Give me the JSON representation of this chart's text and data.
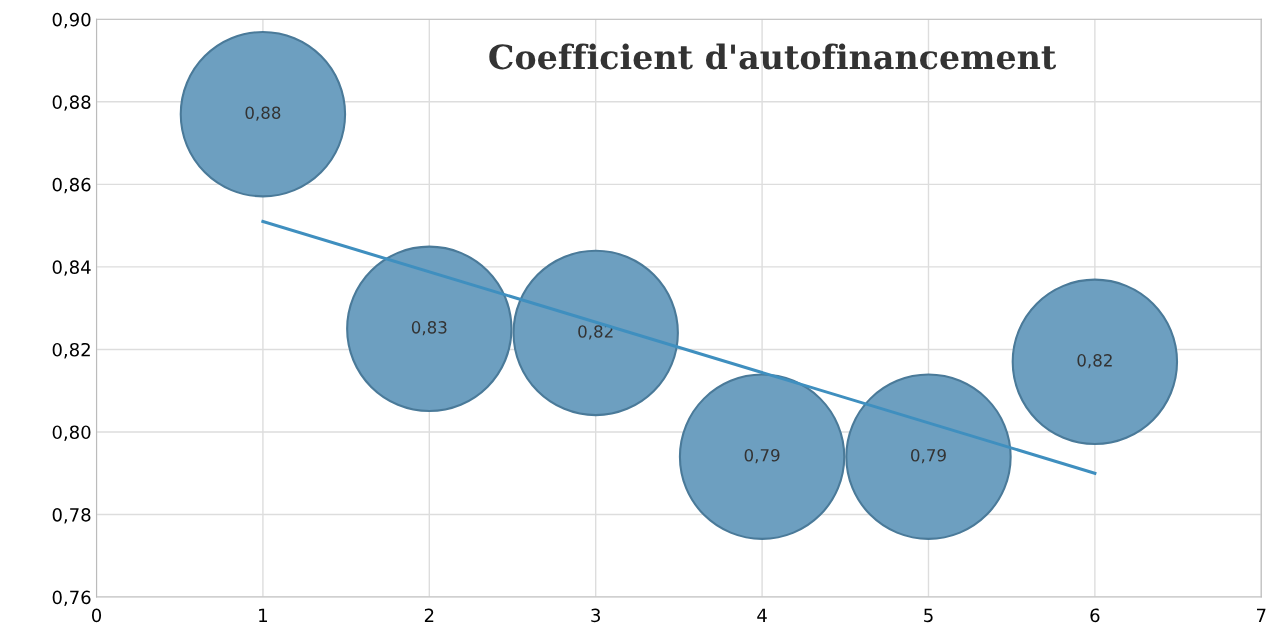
{
  "chart_data": {
    "type": "bubble",
    "title": "Coefficient d'autofinancement",
    "series": [
      {
        "x": [
          1,
          2,
          3,
          4,
          5,
          6
        ],
        "values": [
          0.877,
          0.825,
          0.824,
          0.794,
          0.794,
          0.817
        ],
        "sizes": [
          1,
          1,
          1,
          1,
          1,
          1
        ],
        "color": "#6d9fc0",
        "value_labels": [
          "0,88",
          "0,83",
          "0,82",
          "0,79",
          "0,79",
          "0,82"
        ]
      },
      {
        "type": "line",
        "x": [
          1,
          6
        ],
        "values": [
          0.851,
          0.79
        ],
        "color": "#3f8fbf"
      }
    ],
    "xlim": [
      0,
      7
    ],
    "xticks": [
      0,
      1,
      2,
      3,
      4,
      5,
      6,
      7
    ],
    "ylim": [
      0.76,
      0.9
    ],
    "yticks": [
      {
        "value": 0.76,
        "label": "0,76"
      },
      {
        "value": 0.78,
        "label": "0,78"
      },
      {
        "value": 0.8,
        "label": "0,80"
      },
      {
        "value": 0.82,
        "label": "0,82"
      },
      {
        "value": 0.84,
        "label": "0,84"
      },
      {
        "value": 0.86,
        "label": "0,86"
      },
      {
        "value": 0.88,
        "label": "0,88"
      },
      {
        "value": 0.9,
        "label": "0,90"
      }
    ],
    "grid": true
  }
}
